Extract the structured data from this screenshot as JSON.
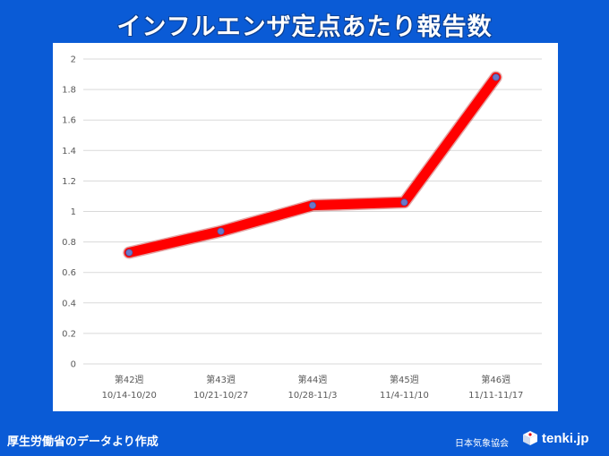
{
  "title": "インフルエンザ定点あたり報告数",
  "footer": {
    "source": "厚生労働省のデータより作成",
    "org": "日本気象協会",
    "logo_text": "tenki.jp",
    "logo_icon": "tenki-cube-icon"
  },
  "colors": {
    "background": "#0a5bd6",
    "line": "#ff0000",
    "marker": "#6a78c8",
    "plot_bg": "#ffffff"
  },
  "chart_data": {
    "type": "line",
    "title": "インフルエンザ定点あたり報告数",
    "xlabel": "",
    "ylabel": "",
    "categories": [
      {
        "week": "第42週",
        "range": "10/14-10/20"
      },
      {
        "week": "第43週",
        "range": "10/21-10/27"
      },
      {
        "week": "第44週",
        "range": "10/28-11/3"
      },
      {
        "week": "第45週",
        "range": "11/4-11/10"
      },
      {
        "week": "第46週",
        "range": "11/11-11/17"
      }
    ],
    "series": [
      {
        "values": [
          0.73,
          0.87,
          1.04,
          1.06,
          1.88
        ]
      }
    ],
    "ylim": [
      0,
      2
    ],
    "yticks": [
      "0",
      "0.2",
      "0.4",
      "0.6",
      "0.8",
      "1",
      "1.2",
      "1.4",
      "1.6",
      "1.8",
      "2"
    ],
    "grid": true,
    "legend": "none"
  }
}
